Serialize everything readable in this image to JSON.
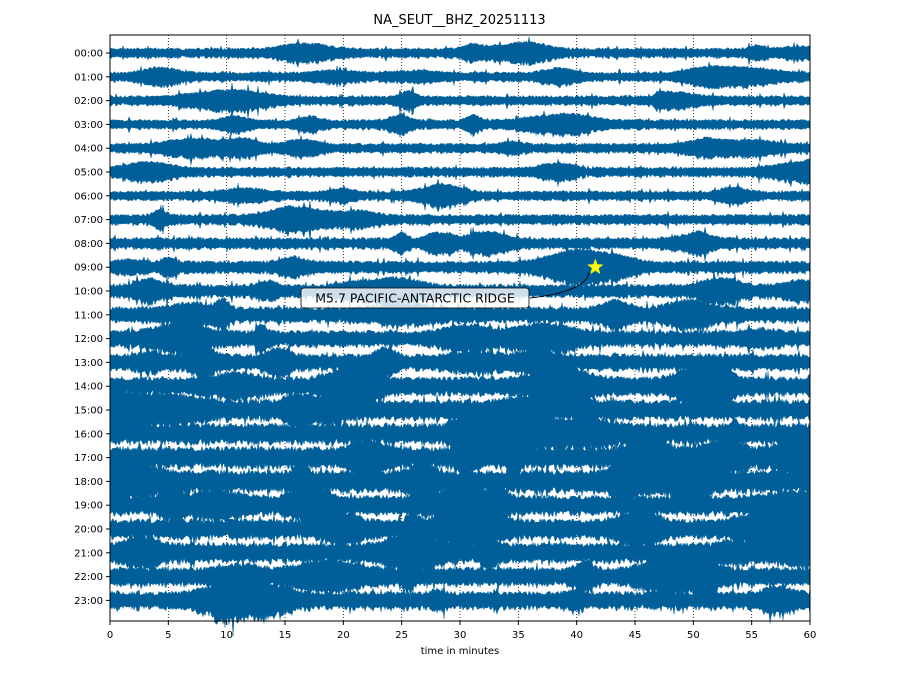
{
  "chart_data": {
    "type": "line",
    "title": "NA_SEUT__BHZ_20251113",
    "xlabel": "time in minutes",
    "ylabel": "",
    "xlim": [
      0,
      60
    ],
    "x_ticks": [
      "0",
      "5",
      "10",
      "15",
      "20",
      "25",
      "30",
      "35",
      "40",
      "45",
      "50",
      "55",
      "60"
    ],
    "y_ticks": [
      "00:00",
      "01:00",
      "02:00",
      "03:00",
      "04:00",
      "05:00",
      "06:00",
      "07:00",
      "08:00",
      "09:00",
      "10:00",
      "11:00",
      "12:00",
      "13:00",
      "14:00",
      "15:00",
      "16:00",
      "17:00",
      "18:00",
      "19:00",
      "20:00",
      "21:00",
      "22:00",
      "23:00"
    ],
    "grid": "vertical dotted lines at x ticks",
    "trace_color": "#005f99",
    "trace_amplitude": [
      0.22,
      0.22,
      0.22,
      0.22,
      0.22,
      0.22,
      0.22,
      0.24,
      0.26,
      0.28,
      0.3,
      0.36,
      0.36,
      0.38,
      0.42,
      0.46,
      0.46,
      0.48,
      0.5,
      0.44,
      0.44,
      0.44,
      0.42,
      0.4
    ],
    "event": {
      "label": "M5.7 PACIFIC-ANTARCTIC RIDGE",
      "marker": "star",
      "marker_color": "#ffff00",
      "x_minutes": 41.6,
      "hour_row": "09:00"
    }
  }
}
